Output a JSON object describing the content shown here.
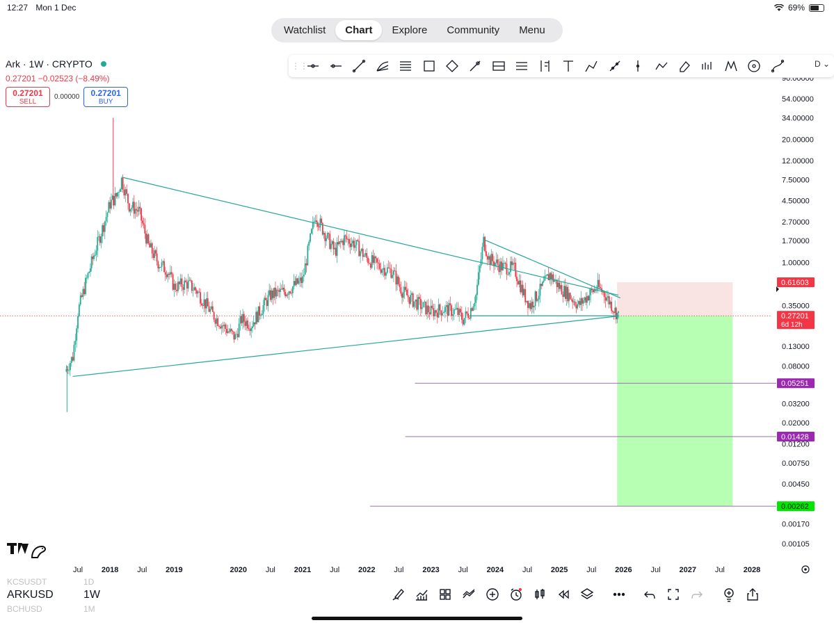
{
  "status_bar": {
    "time": "12:27",
    "date": "Mon 1 Dec",
    "battery": "69%",
    "battery_level": 0.69
  },
  "nav": {
    "tabs": [
      {
        "label": "Watchlist",
        "active": false
      },
      {
        "label": "Chart",
        "active": true
      },
      {
        "label": "Explore",
        "active": false
      },
      {
        "label": "Community",
        "active": false
      },
      {
        "label": "Menu",
        "active": false
      }
    ]
  },
  "symbol": {
    "title": "Ark · 1W · CRYPTO",
    "change": "0.27201 −0.02523 (−8.49%)",
    "sell_price": "0.27201",
    "sell_label": "SELL",
    "spread": "0.00000",
    "buy_price": "0.27201",
    "buy_label": "BUY"
  },
  "toolbar": {
    "tools": [
      "crosshair-icon",
      "horizontal-ray-icon",
      "trend-line-icon",
      "pitchfork-icon",
      "parallel-channel-icon",
      "rectangle-icon",
      "ellipse-icon",
      "brush-icon",
      "fib-retracement-icon",
      "fib-extension-icon",
      "fib-timezone-icon",
      "text-icon",
      "pen-icon",
      "measure-icon",
      "vertical-line-icon",
      "path-icon",
      "eraser-icon",
      "volume-profile-icon",
      "pattern-icon",
      "circle-icon",
      "curve-icon"
    ],
    "interval_label": "D"
  },
  "chart_data": {
    "type": "candlestick",
    "title": "",
    "scale": "log",
    "ylim": [
      0.00105,
      90
    ],
    "x_ticks": [
      "Jul",
      "2018",
      "Jul",
      "2019",
      "2020",
      "Jul",
      "2021",
      "Jul",
      "2022",
      "Jul",
      "2023",
      "Jul",
      "2024",
      "Jul",
      "2025",
      "Jul",
      "2026",
      "Jul",
      "2027",
      "Jul",
      "2028"
    ],
    "x_tick_dates": [
      2017.5,
      2018.0,
      2018.5,
      2019.0,
      2020.0,
      2020.5,
      2021.0,
      2021.5,
      2022.0,
      2022.5,
      2023.0,
      2023.5,
      2024.0,
      2024.5,
      2025.0,
      2025.5,
      2026.0,
      2026.5,
      2027.0,
      2027.5,
      2028.0
    ],
    "y_ticks": [
      "90.00000",
      "54.00000",
      "34.00000",
      "20.00000",
      "12.00000",
      "7.50000",
      "4.50000",
      "2.70000",
      "1.70000",
      "1.00000",
      "0.35000",
      "0.13000",
      "0.08000",
      "0.03200",
      "0.02000",
      "0.01200",
      "0.00750",
      "0.00450",
      "0.00170",
      "0.00105"
    ],
    "y_tick_values": [
      90,
      54,
      34,
      20,
      12,
      7.5,
      4.5,
      2.7,
      1.7,
      1.0,
      0.35,
      0.13,
      0.08,
      0.032,
      0.02,
      0.012,
      0.0075,
      0.0045,
      0.0017,
      0.00105
    ],
    "price_path": [
      [
        2017.3,
        0.07
      ],
      [
        2017.42,
        0.1
      ],
      [
        2017.5,
        0.3
      ],
      [
        2017.62,
        0.6
      ],
      [
        2017.75,
        1.2
      ],
      [
        2017.9,
        2.5
      ],
      [
        2018.0,
        4.2
      ],
      [
        2018.1,
        5.0
      ],
      [
        2018.18,
        7.5
      ],
      [
        2018.3,
        4.0
      ],
      [
        2018.45,
        3.5
      ],
      [
        2018.6,
        1.5
      ],
      [
        2018.75,
        1.0
      ],
      [
        2018.9,
        0.8
      ],
      [
        2019.0,
        0.55
      ],
      [
        2019.2,
        0.6
      ],
      [
        2019.35,
        0.5
      ],
      [
        2019.6,
        0.28
      ],
      [
        2019.8,
        0.2
      ],
      [
        2019.95,
        0.16
      ],
      [
        2020.05,
        0.25
      ],
      [
        2020.2,
        0.22
      ],
      [
        2020.5,
        0.45
      ],
      [
        2020.75,
        0.5
      ],
      [
        2021.0,
        0.65
      ],
      [
        2021.1,
        1.5
      ],
      [
        2021.2,
        3.2
      ],
      [
        2021.35,
        2.0
      ],
      [
        2021.5,
        1.3
      ],
      [
        2021.65,
        1.8
      ],
      [
        2021.8,
        1.6
      ],
      [
        2022.0,
        1.1
      ],
      [
        2022.2,
        0.9
      ],
      [
        2022.4,
        0.8
      ],
      [
        2022.55,
        0.5
      ],
      [
        2022.7,
        0.4
      ],
      [
        2022.9,
        0.33
      ],
      [
        2023.0,
        0.3
      ],
      [
        2023.2,
        0.32
      ],
      [
        2023.4,
        0.3
      ],
      [
        2023.5,
        0.25
      ],
      [
        2023.6,
        0.3
      ],
      [
        2023.7,
        0.45
      ],
      [
        2023.82,
        1.7
      ],
      [
        2023.9,
        1.1
      ],
      [
        2024.1,
        0.9
      ],
      [
        2024.3,
        0.85
      ],
      [
        2024.45,
        0.45
      ],
      [
        2024.55,
        0.35
      ],
      [
        2024.7,
        0.5
      ],
      [
        2024.85,
        0.75
      ],
      [
        2025.0,
        0.55
      ],
      [
        2025.15,
        0.45
      ],
      [
        2025.3,
        0.35
      ],
      [
        2025.45,
        0.45
      ],
      [
        2025.6,
        0.55
      ],
      [
        2025.72,
        0.45
      ],
      [
        2025.85,
        0.32
      ],
      [
        2025.92,
        0.27201
      ]
    ],
    "last_price": "0.27201",
    "last_price_countdown": "6d 12h",
    "trend_lines": [
      {
        "from": [
          2018.18,
          8.0
        ],
        "to": [
          2025.92,
          0.45
        ],
        "note": "descending resistance"
      },
      {
        "from": [
          2017.42,
          0.062
        ],
        "to": [
          2025.92,
          0.27
        ],
        "note": "ascending support"
      },
      {
        "from": [
          2023.6,
          0.272
        ],
        "to": [
          2025.92,
          0.272
        ],
        "note": "horizontal support"
      }
    ],
    "position": {
      "type": "short",
      "entry": 0.27201,
      "stop": 0.61603,
      "target": 0.00262,
      "start": 2025.9,
      "end": 2027.7
    },
    "labels": [
      {
        "value": "0.61603",
        "color": "#f23645"
      },
      {
        "value": "0.27201",
        "color": "#f23645"
      },
      {
        "value": "0.05251",
        "color": "#9c27b0"
      },
      {
        "value": "0.01428",
        "color": "#9c27b0"
      },
      {
        "value": "0.00262",
        "color": "#00e600"
      }
    ],
    "h_lines": [
      {
        "value": 0.05251,
        "from": 2022.75
      },
      {
        "value": 0.01428,
        "from": 2022.6
      },
      {
        "value": 0.00262,
        "from": 2022.05
      }
    ]
  },
  "bottom": {
    "watch": [
      {
        "symbol": "KCSUSDT",
        "interval": "1D"
      },
      {
        "symbol": "ARKUSD",
        "interval": "1W"
      },
      {
        "symbol": "BCHUSD",
        "interval": "1M"
      }
    ],
    "icons": [
      "drawing-tools-icon",
      "indicators-icon",
      "templates-icon",
      "compare-icon",
      "add-icon",
      "alert-icon",
      "candle-type-icon",
      "replay-icon",
      "layers-icon",
      "more-icon",
      "undo-icon",
      "fullscreen-icon",
      "redo-icon",
      "ideas-icon",
      "share-icon"
    ]
  }
}
